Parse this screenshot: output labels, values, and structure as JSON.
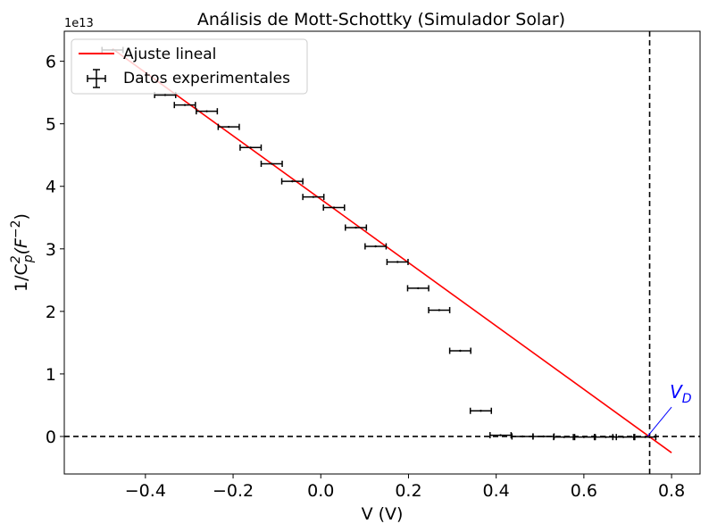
{
  "chart_data": {
    "type": "scatter",
    "title": "Análisis de Mott-Schottky (Simulador Solar)",
    "xlabel": "V (V)",
    "ylabel_main": "1/C",
    "ylabel_sub": "p",
    "ylabel_sup": "2",
    "ylabel_paren_open": "(F",
    "ylabel_paren_sup": "−2",
    "ylabel_paren_close": ")",
    "y_offset_label": "1e13",
    "y_scale": 10000000000000.0,
    "xlim": [
      -0.585,
      0.865
    ],
    "ylim": [
      -0.6,
      6.48
    ],
    "x_ticks": [
      -0.4,
      -0.2,
      0.0,
      0.2,
      0.4,
      0.6,
      0.8
    ],
    "x_tick_labels": [
      "−0.4",
      "−0.2",
      "0.0",
      "0.2",
      "0.4",
      "0.6",
      "0.8"
    ],
    "y_ticks": [
      0,
      1,
      2,
      3,
      4,
      5,
      6
    ],
    "y_tick_labels": [
      "0",
      "1",
      "2",
      "3",
      "4",
      "5",
      "6"
    ],
    "grid": false,
    "legend_position": "top-left",
    "series": [
      {
        "name": "Datos experimentales",
        "kind": "errorbar",
        "color": "#000000",
        "x_error": 0.024,
        "x": [
          -0.475,
          -0.355,
          -0.31,
          -0.26,
          -0.21,
          -0.16,
          -0.112,
          -0.065,
          -0.017,
          0.03,
          0.08,
          0.125,
          0.175,
          0.222,
          0.27,
          0.318,
          0.365,
          0.41,
          0.46,
          0.508,
          0.555,
          0.6,
          0.65,
          0.69,
          0.74
        ],
        "y": [
          6.18,
          5.46,
          5.3,
          5.2,
          4.95,
          4.62,
          4.36,
          4.08,
          3.83,
          3.66,
          3.34,
          3.04,
          2.79,
          2.37,
          2.02,
          1.37,
          0.41,
          0.02,
          0.0,
          0.0,
          -0.01,
          -0.01,
          -0.01,
          -0.01,
          -0.01
        ]
      },
      {
        "name": "Ajuste lineal",
        "kind": "line",
        "color": "#ff0000",
        "x": [
          -0.475,
          0.8
        ],
        "y": [
          6.2,
          -0.26
        ]
      }
    ],
    "reference_lines": {
      "vertical_x": 0.75,
      "horizontal_y": 0.0,
      "style": "dashed",
      "color": "#000000"
    },
    "annotation": {
      "text_main": "V",
      "text_sub": "D",
      "color": "#0000ff",
      "point_x": 0.745,
      "point_y": 0.0,
      "text_x": 0.8,
      "text_y": 0.47
    }
  }
}
